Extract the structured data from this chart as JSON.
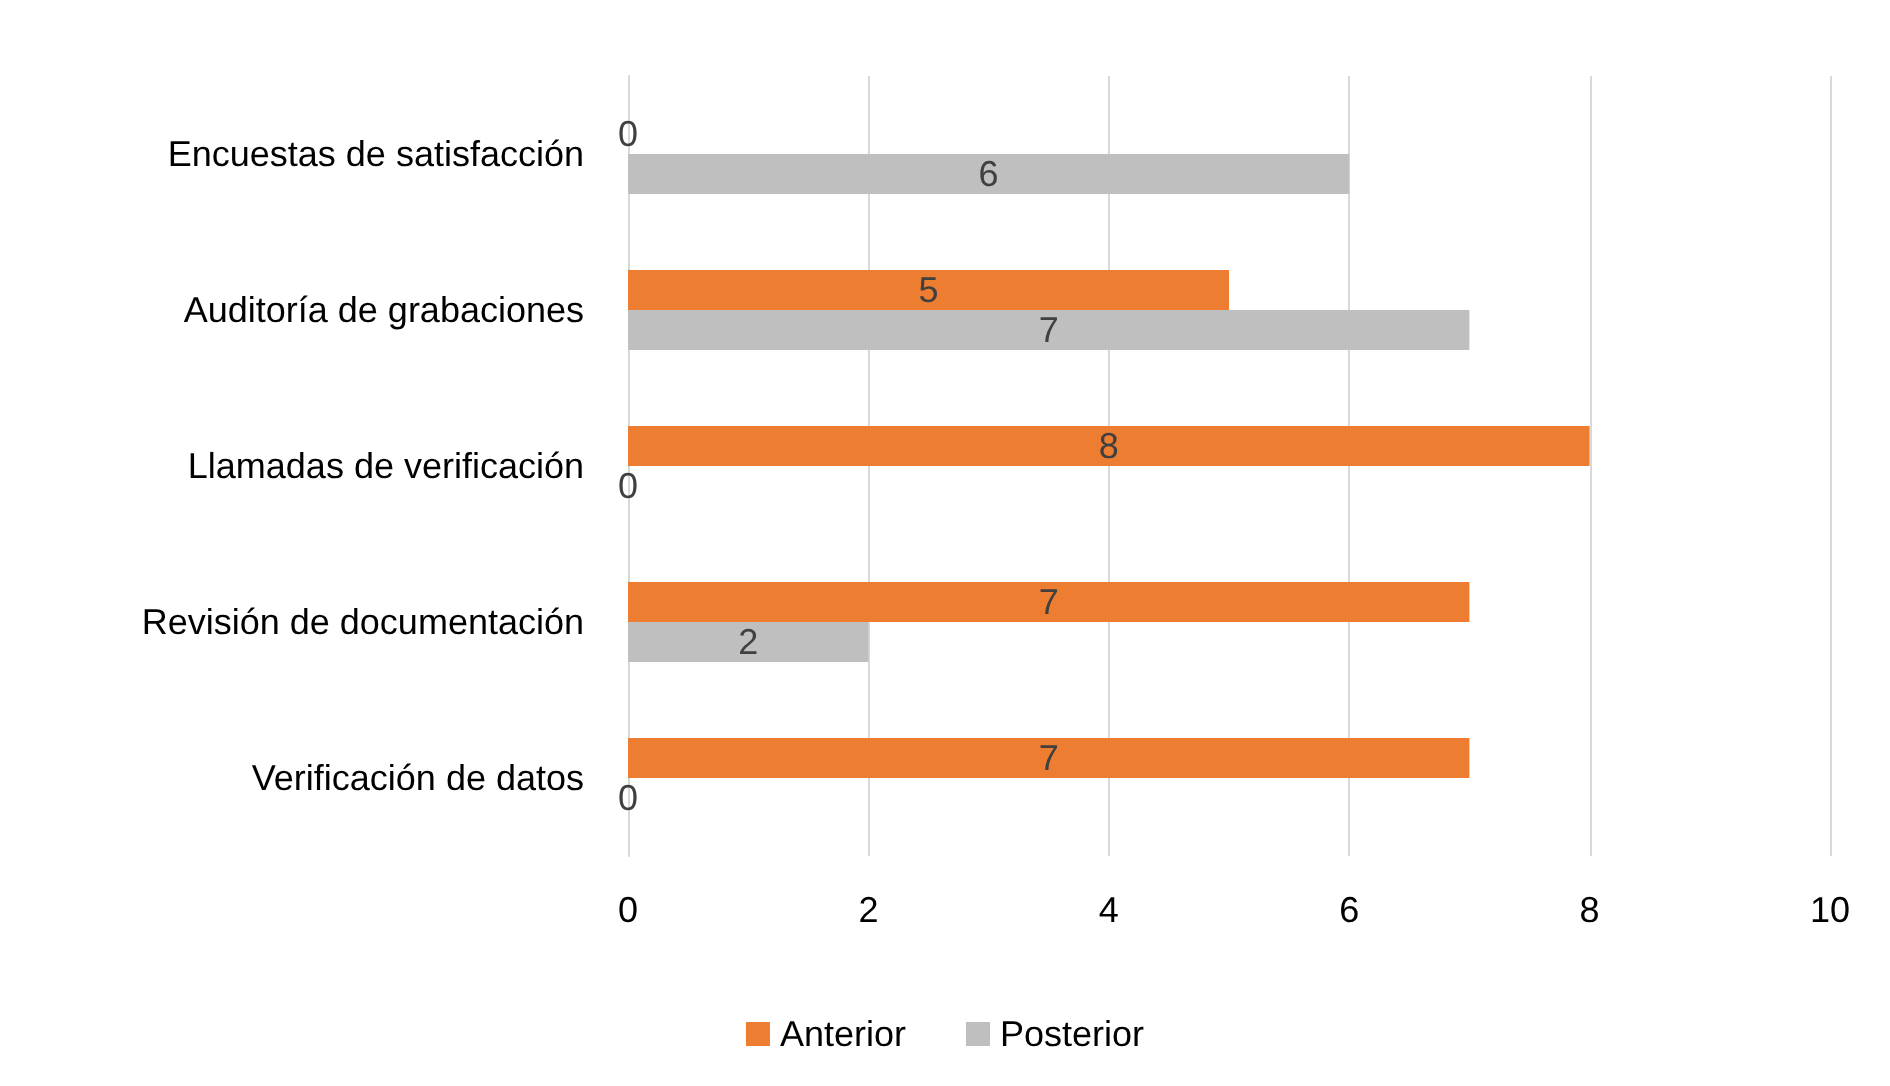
{
  "chart_data": {
    "type": "bar",
    "orientation": "horizontal",
    "categories": [
      "Encuestas de satisfacción",
      "Auditoría de grabaciones",
      "Llamadas de verificación",
      "Revisión de documentación",
      "Verificación de datos"
    ],
    "series": [
      {
        "name": "Anterior",
        "color": "#ed7d31",
        "values": [
          0,
          5,
          8,
          7,
          7
        ]
      },
      {
        "name": "Posterior",
        "color": "#bfbfbf",
        "values": [
          6,
          7,
          0,
          2,
          0
        ]
      }
    ],
    "xlim": [
      0,
      10
    ],
    "xticks": [
      0,
      2,
      4,
      6,
      8,
      10
    ],
    "grid": "x",
    "legend": "bottom",
    "data_labels": true
  }
}
